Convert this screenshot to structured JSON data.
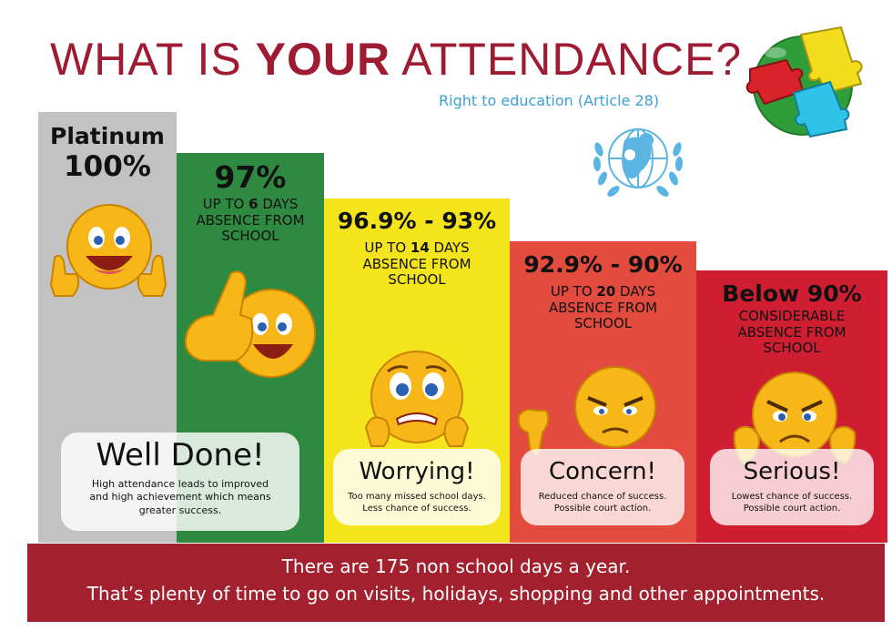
{
  "header": {
    "title_part1": "WHAT IS ",
    "title_bold": "YOUR",
    "title_part2": " ATTENDANCE?",
    "subtitle": "Right to education (Article 28)"
  },
  "colors": {
    "title": "#9e1b32",
    "subtitle": "#3aa0d8",
    "platinum": "#c2c2c2",
    "green": "#2f8a41",
    "yellow": "#f4e41c",
    "orange_red": "#e24b3d",
    "red": "#cf1e32",
    "footer": "#a3212f"
  },
  "icons": [
    "puzzle-globe-icon",
    "unicef-logo-icon",
    "thumbs-up-smiley-icon",
    "worried-smiley-icon",
    "angry-smiley-icon"
  ],
  "levels": [
    {
      "heading1": "Platinum",
      "heading2": "100%",
      "card_title": "Well Done!",
      "card_text": "High attendance leads to improved and high achievement which means greater success."
    },
    {
      "heading": "97%",
      "detail_pre": "UP TO ",
      "detail_num": "6",
      "detail_post": " DAYS ABSENCE FROM SCHOOL"
    },
    {
      "heading": "96.9% - 93%",
      "detail_pre": "UP TO ",
      "detail_num": "14",
      "detail_post": " DAYS ABSENCE FROM SCHOOL",
      "card_title": "Worrying!",
      "card_text": "Too many missed school days. Less chance of success."
    },
    {
      "heading": "92.9% - 90%",
      "detail_pre": "UP TO ",
      "detail_num": "20",
      "detail_post": " DAYS ABSENCE FROM SCHOOL",
      "card_title": "Concern!",
      "card_text": "Reduced chance of success. Possible court action."
    },
    {
      "heading": "Below 90%",
      "detail": "CONSIDERABLE ABSENCE FROM SCHOOL",
      "card_title": "Serious!",
      "card_text": "Lowest chance of success. Possible court action."
    }
  ],
  "footer": {
    "line1": "There are 175 non school days a year.",
    "line2": "That’s plenty of time to go on visits, holidays, shopping and other appointments."
  }
}
